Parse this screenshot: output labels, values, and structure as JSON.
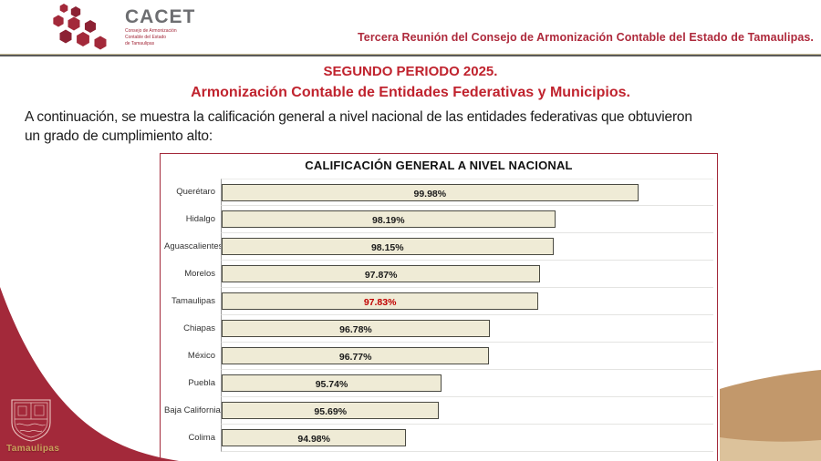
{
  "header": {
    "logo": {
      "acronym": "CACET",
      "subtitle_lines": [
        "Consejo de Armonización",
        "Contable del Estado",
        "de Tamaulipas"
      ]
    },
    "session_title": "Tercera Reunión del Consejo de Armonización Contable del Estado de Tamaulipas."
  },
  "titles": {
    "period": "SEGUNDO PERIODO 2025.",
    "subject": "Armonización Contable de Entidades Federativas y Municipios."
  },
  "intro": {
    "lines": [
      "A continuación, se muestra la calificación general a nivel nacional de las entidades federativas que obtuvieron",
      "un grado de cumplimiento alto:"
    ]
  },
  "chart_data": {
    "type": "bar",
    "orientation": "horizontal",
    "title": "CALIFICACIÓN GENERAL A NIVEL NACIONAL",
    "categories": [
      "Querétaro",
      "Hidalgo",
      "Aguascalientes",
      "Morelos",
      "Tamaulipas",
      "Chiapas",
      "México",
      "Puebla",
      "Baja California",
      "Colima"
    ],
    "values": [
      99.98,
      98.19,
      98.15,
      97.87,
      97.83,
      96.78,
      96.77,
      95.74,
      95.69,
      94.98
    ],
    "value_labels": [
      "99.98%",
      "98.19%",
      "98.15%",
      "97.87%",
      "97.83%",
      "96.78%",
      "96.77%",
      "95.74%",
      "95.69%",
      "94.98%"
    ],
    "highlight_category": "Tamaulipas",
    "highlight_color": "#C00000",
    "axis_min": 91,
    "axis_max": 101.6,
    "bar_fill": "#EFEBD6",
    "bar_border": "#4A4A42",
    "grid": true,
    "legend": false
  },
  "footer": {
    "state_name": "Tamaulipas"
  },
  "colors": {
    "maroon": "#A3293A",
    "title_red": "#C0232E",
    "header_red": "#AE2A3C",
    "tan_dark": "#C2986B",
    "tan_light": "#DCC29B",
    "gold_text": "#C9A25D",
    "logo_gray": "#6D6E71"
  }
}
